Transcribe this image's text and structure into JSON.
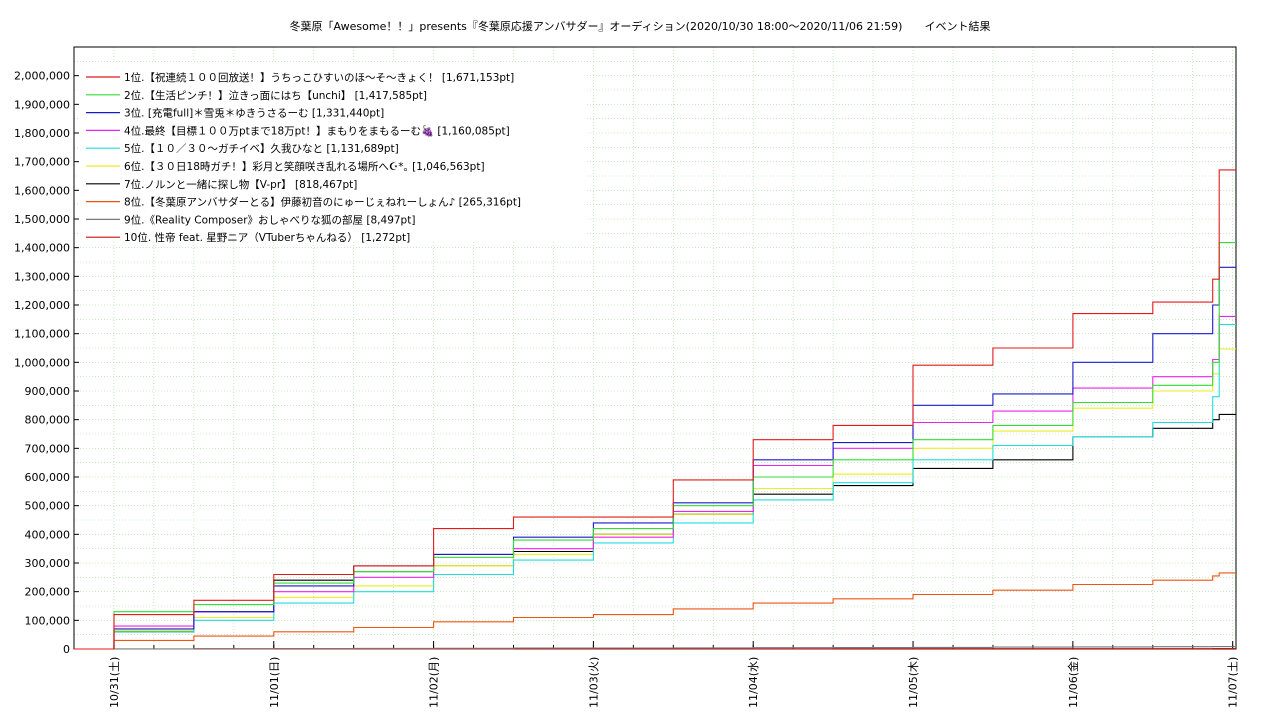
{
  "chart_data": {
    "type": "line",
    "title": "冬葉原「Awesome！！」presents『冬葉原応援アンバサダー』オーディション(2020/10/30 18:00〜2020/11/06 21:59)　　イベント結果",
    "xlabel": "",
    "ylabel": "",
    "ylim": [
      0,
      2100000
    ],
    "xlim": [
      "2020-10-30 18:00",
      "2020-11-07 00:30"
    ],
    "grid": true,
    "legend_position": "top-left",
    "y_ticks": [
      "0",
      "100,000",
      "200,000",
      "300,000",
      "400,000",
      "500,000",
      "600,000",
      "700,000",
      "800,000",
      "900,000",
      "1,000,000",
      "1,100,000",
      "1,200,000",
      "1,300,000",
      "1,400,000",
      "1,500,000",
      "1,600,000",
      "1,700,000",
      "1,800,000",
      "1,900,000",
      "2,000,000"
    ],
    "x_ticks": [
      {
        "t": "2020-10-31 00:00",
        "label": "10/31(土)"
      },
      {
        "t": "2020-11-01 00:00",
        "label": "11/01(日)"
      },
      {
        "t": "2020-11-02 00:00",
        "label": "11/02(月)"
      },
      {
        "t": "2020-11-03 00:00",
        "label": "11/03(火)"
      },
      {
        "t": "2020-11-04 00:00",
        "label": "11/04(水)"
      },
      {
        "t": "2020-11-05 00:00",
        "label": "11/05(木)"
      },
      {
        "t": "2020-11-06 00:00",
        "label": "11/06(金)"
      },
      {
        "t": "2020-11-07 00:00",
        "label": "11/07(土)"
      }
    ],
    "x": [
      "2020-10-30 18:00",
      "2020-10-31 00:00",
      "2020-10-31 12:00",
      "2020-11-01 00:00",
      "2020-11-01 12:00",
      "2020-11-02 00:00",
      "2020-11-02 12:00",
      "2020-11-03 00:00",
      "2020-11-03 12:00",
      "2020-11-04 00:00",
      "2020-11-04 12:00",
      "2020-11-05 00:00",
      "2020-11-05 12:00",
      "2020-11-06 00:00",
      "2020-11-06 12:00",
      "2020-11-06 21:00",
      "2020-11-06 21:59"
    ],
    "series": [
      {
        "name": "1位.【祝連続１００回放送！】うちっこひすいのほ〜そ〜きょく！ [1,671,153pt]",
        "color": "#e41a1a",
        "values": [
          0,
          120000,
          170000,
          260000,
          290000,
          420000,
          460000,
          460000,
          590000,
          730000,
          780000,
          990000,
          1050000,
          1170000,
          1210000,
          1290000,
          1671153
        ]
      },
      {
        "name": "2位.【生活ピンチ！】泣きっ面にはち【unchi】 [1,417,585pt]",
        "color": "#33dd33",
        "values": [
          0,
          130000,
          155000,
          230000,
          270000,
          320000,
          380000,
          420000,
          500000,
          600000,
          660000,
          730000,
          780000,
          860000,
          920000,
          1000000,
          1417585
        ]
      },
      {
        "name": "3位. [充電full]＊雪兎＊ゆきうさるーむ [1,331,440pt]",
        "color": "#1a1acc",
        "values": [
          0,
          70000,
          130000,
          220000,
          290000,
          330000,
          390000,
          440000,
          510000,
          660000,
          720000,
          850000,
          890000,
          1000000,
          1100000,
          1200000,
          1331440
        ]
      },
      {
        "name": "4位.最終【目標１００万ptまで18万pt！】まもりをまもるーむ🍇 [1,160,085pt]",
        "color": "#ee22ee",
        "values": [
          0,
          80000,
          130000,
          200000,
          250000,
          330000,
          350000,
          390000,
          480000,
          640000,
          700000,
          790000,
          830000,
          910000,
          950000,
          1010000,
          1160085
        ]
      },
      {
        "name": "5位.【１０／３０〜ガチイベ】久我ひなと [1,131,689pt]",
        "color": "#22dddd",
        "values": [
          0,
          60000,
          100000,
          160000,
          200000,
          260000,
          310000,
          370000,
          440000,
          520000,
          580000,
          660000,
          710000,
          740000,
          790000,
          880000,
          1131689
        ]
      },
      {
        "name": "6位.【３０日18時ガチ！】彩月と笑顔咲き乱れる場所へ☪︎*｡ [1,046,563pt]",
        "color": "#eeee22",
        "values": [
          0,
          65000,
          110000,
          180000,
          220000,
          290000,
          330000,
          400000,
          470000,
          560000,
          610000,
          700000,
          760000,
          840000,
          900000,
          960000,
          1046563
        ]
      },
      {
        "name": "7位.ノルンと一緒に探し物【V-pr】 [818,467pt]",
        "color": "#000000",
        "values": [
          0,
          60000,
          130000,
          240000,
          270000,
          290000,
          340000,
          400000,
          470000,
          540000,
          570000,
          630000,
          660000,
          740000,
          770000,
          800000,
          818467
        ]
      },
      {
        "name": "8位.【冬葉原アンバサダーとる】伊藤初音のにゅーじぇねれーしょん♪ [265,316pt]",
        "color": "#ee5511",
        "values": [
          0,
          30000,
          45000,
          60000,
          75000,
          95000,
          110000,
          120000,
          140000,
          160000,
          175000,
          190000,
          205000,
          225000,
          240000,
          255000,
          265316
        ]
      },
      {
        "name": "9位.《Reality Composer》おしゃべりな狐の部屋 [8,497pt]",
        "color": "#777777",
        "values": [
          0,
          500,
          1000,
          1500,
          2000,
          2500,
          3000,
          3500,
          4000,
          4500,
          5000,
          5500,
          6500,
          7500,
          8000,
          8400,
          8497
        ]
      },
      {
        "name": "10位. 性帝 feat. 星野ニア（VTuberちゃんねる） [1,272pt]",
        "color": "#cc1111",
        "values": [
          0,
          100,
          200,
          300,
          400,
          500,
          600,
          700,
          800,
          850,
          900,
          950,
          1000,
          1100,
          1200,
          1250,
          1272
        ]
      }
    ]
  }
}
